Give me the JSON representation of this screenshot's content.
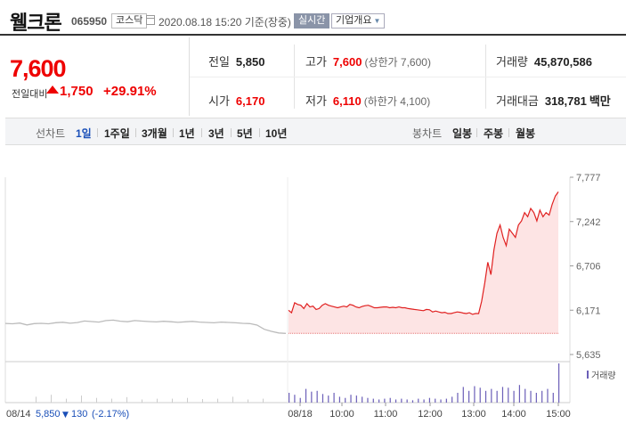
{
  "header": {
    "stock_name": "웰크론",
    "stock_code": "065950",
    "market": "코스닥",
    "datetime": "2020.08.18 15:20",
    "basis": "기준(장중)",
    "realtime_button": "실시간",
    "company_overview_button": "기업개요"
  },
  "summary": {
    "current_price": "7,600",
    "change_label": "전일대비",
    "change_value": "1,750",
    "change_percent": "+29.91%",
    "prev_close": {
      "label": "전일",
      "value": "5,850"
    },
    "high": {
      "label": "고가",
      "value": "7,600",
      "sub": "(상한가 7,600)"
    },
    "volume": {
      "label": "거래량",
      "value": "45,870,586"
    },
    "open": {
      "label": "시가",
      "value": "6,170"
    },
    "low": {
      "label": "저가",
      "value": "6,110",
      "sub": "(하한가 4,100)"
    },
    "trade_value": {
      "label": "거래대금",
      "value": "318,781",
      "unit": "백만"
    }
  },
  "toolbar": {
    "line_chart_label": "선차트",
    "periods": [
      "1일",
      "1주일",
      "3개월",
      "1년",
      "3년",
      "5년",
      "10년"
    ],
    "selected_period": "1일",
    "candle_label": "봉차트",
    "candles": [
      "일봉",
      "주봉",
      "월봉"
    ]
  },
  "colors": {
    "up": "#e00000",
    "down": "#1a4fb8",
    "line": "#e02020",
    "fill": "#fde4e4",
    "prev_line": "#bbbbbb"
  },
  "chart_data": {
    "type": "line",
    "y_ticks": [
      "7,777",
      "7,242",
      "6,706",
      "6,171",
      "5,635"
    ],
    "ylim": [
      5635,
      7777
    ],
    "x_ticks": [
      "08/18",
      "10:00",
      "11:00",
      "12:00",
      "13:00",
      "14:00",
      "15:00"
    ],
    "volume_label": "거래량",
    "prev_day": {
      "date": "08/14",
      "close": "5,850",
      "change": "130",
      "change_percent": "(-2.17%)",
      "values": [
        6011,
        6006,
        6015,
        5992,
        6008,
        6012,
        6006,
        6019,
        6025,
        6013,
        6021,
        6040,
        6033,
        6027,
        6045,
        6051,
        6038,
        6031,
        6045,
        6039,
        6033,
        6029,
        6036,
        6031,
        6024,
        6030,
        6035,
        6027,
        6022,
        6018,
        6027,
        6022,
        6018,
        6012,
        6008,
        5990,
        5940,
        5915,
        5895,
        5890
      ]
    },
    "today": {
      "open": 6170,
      "values": [
        6170,
        6140,
        6260,
        6240,
        6230,
        6190,
        6250,
        6210,
        6220,
        6180,
        6190,
        6230,
        6250,
        6230,
        6220,
        6210,
        6200,
        6210,
        6220,
        6210,
        6240,
        6230,
        6210,
        6200,
        6215,
        6225,
        6230,
        6215,
        6200,
        6200,
        6205,
        6210,
        6210,
        6200,
        6205,
        6200,
        6210,
        6200,
        6200,
        6190,
        6185,
        6180,
        6175,
        6170,
        6165,
        6180,
        6175,
        6150,
        6160,
        6150,
        6140,
        6145,
        6130,
        6130,
        6140,
        6150,
        6145,
        6135,
        6130,
        6140,
        6120,
        6130,
        6130,
        6280,
        6500,
        6750,
        6600,
        6900,
        7100,
        7200,
        7050,
        6950,
        7150,
        7100,
        7050,
        7200,
        7250,
        7350,
        7300,
        7400,
        7350,
        7250,
        7380,
        7300,
        7350,
        7320,
        7450,
        7550,
        7600
      ],
      "baseline": 5890
    },
    "volume_bars_prev": [
      0.15,
      0.2,
      0.1,
      0.18,
      0.12,
      0.1,
      0.14,
      0.08,
      0.1,
      0.1,
      0.12,
      0.09,
      0.1,
      0.15,
      0.08,
      0.1
    ],
    "volume_bars_today": [
      0.25,
      0.2,
      0.12,
      0.35,
      0.28,
      0.3,
      0.22,
      0.18,
      0.25,
      0.15,
      0.12,
      0.2,
      0.18,
      0.15,
      0.12,
      0.1,
      0.08,
      0.1,
      0.12,
      0.08,
      0.1,
      0.08,
      0.06,
      0.1,
      0.08,
      0.12,
      0.1,
      0.08,
      0.1,
      0.15,
      0.25,
      0.4,
      0.3,
      0.42,
      0.38,
      0.3,
      0.35,
      0.3,
      0.4,
      0.38,
      0.3,
      0.45,
      0.35,
      0.3,
      0.25,
      0.3,
      0.35,
      0.25,
      1.0
    ]
  }
}
